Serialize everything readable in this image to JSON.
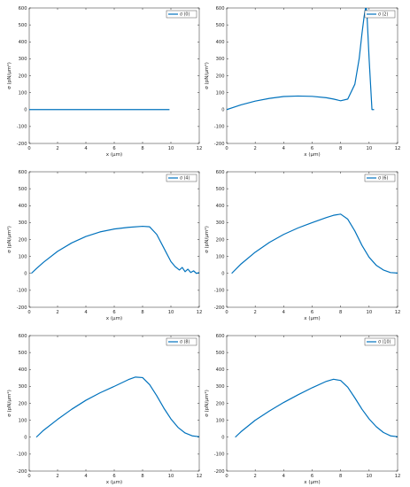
{
  "chart_data": [
    {
      "type": "line",
      "xlabel": "x (μm)",
      "ylabel": "σ (pN/μm²)",
      "xlim": [
        0,
        12
      ],
      "ylim": [
        -200,
        600
      ],
      "xticks": [
        "0",
        "2",
        "4",
        "6",
        "8",
        "10",
        "12"
      ],
      "yticks": [
        "-200",
        "-100",
        "0",
        "100",
        "200",
        "300",
        "400",
        "500",
        "600"
      ],
      "series": [
        {
          "name": "σ (0)",
          "color": "#0072BD",
          "x": [
            0,
            2,
            4,
            6,
            8,
            9.9
          ],
          "y": [
            0,
            0,
            0,
            0,
            0,
            0
          ]
        }
      ]
    },
    {
      "type": "line",
      "xlabel": "x (μm)",
      "ylabel": "σ (pN/μm²)",
      "xlim": [
        0,
        12
      ],
      "ylim": [
        -200,
        600
      ],
      "xticks": [
        "0",
        "2",
        "4",
        "6",
        "8",
        "10",
        "12"
      ],
      "yticks": [
        "-200",
        "-100",
        "0",
        "100",
        "200",
        "300",
        "400",
        "500",
        "600"
      ],
      "series": [
        {
          "name": "σ (2)",
          "color": "#0072BD",
          "x": [
            0,
            1,
            2,
            3,
            4,
            5,
            6,
            7,
            7.5,
            8,
            8.5,
            9,
            9.3,
            9.5,
            9.65,
            9.75,
            9.8,
            9.85,
            10.0,
            10.2,
            10.3,
            10.35
          ],
          "y": [
            0,
            28,
            50,
            66,
            77,
            80,
            78,
            70,
            62,
            52,
            62,
            150,
            300,
            450,
            550,
            600,
            600,
            560,
            300,
            0,
            0,
            0
          ]
        }
      ]
    },
    {
      "type": "line",
      "xlabel": "x (μm)",
      "ylabel": "σ (pN/μm²)",
      "xlim": [
        0,
        12
      ],
      "ylim": [
        -200,
        600
      ],
      "xticks": [
        "0",
        "2",
        "4",
        "6",
        "8",
        "10",
        "12"
      ],
      "yticks": [
        "-200",
        "-100",
        "0",
        "100",
        "200",
        "300",
        "400",
        "500",
        "600"
      ],
      "series": [
        {
          "name": "σ (4)",
          "color": "#0072BD",
          "x": [
            0.15,
            0.5,
            1,
            2,
            3,
            4,
            5,
            6,
            7,
            8,
            8.5,
            9,
            9.5,
            10,
            10.3,
            10.6,
            10.8,
            11,
            11.2,
            11.4,
            11.6,
            11.8,
            12
          ],
          "y": [
            0,
            28,
            65,
            130,
            180,
            218,
            245,
            262,
            272,
            278,
            275,
            230,
            150,
            70,
            40,
            20,
            35,
            10,
            25,
            5,
            15,
            0,
            5
          ]
        }
      ]
    },
    {
      "type": "line",
      "xlabel": "x (μm)",
      "ylabel": "σ (pN/μm²)",
      "xlim": [
        0,
        12
      ],
      "ylim": [
        -200,
        600
      ],
      "xticks": [
        "0",
        "2",
        "4",
        "6",
        "8",
        "10",
        "12"
      ],
      "yticks": [
        "-200",
        "-100",
        "0",
        "100",
        "200",
        "300",
        "400",
        "500",
        "600"
      ],
      "series": [
        {
          "name": "σ (6)",
          "color": "#0072BD",
          "x": [
            0.35,
            1,
            2,
            3,
            4,
            5,
            6,
            7,
            7.5,
            8,
            8.5,
            9,
            9.5,
            10,
            10.5,
            11,
            11.5,
            12
          ],
          "y": [
            0,
            55,
            125,
            183,
            230,
            268,
            300,
            330,
            343,
            350,
            320,
            250,
            165,
            95,
            48,
            20,
            5,
            2
          ]
        }
      ]
    },
    {
      "type": "line",
      "xlabel": "x (μm)",
      "ylabel": "σ (pN/μm²)",
      "xlim": [
        0,
        12
      ],
      "ylim": [
        -200,
        600
      ],
      "xticks": [
        "0",
        "2",
        "4",
        "6",
        "8",
        "10",
        "12"
      ],
      "yticks": [
        "-200",
        "-100",
        "0",
        "100",
        "200",
        "300",
        "400",
        "500",
        "600"
      ],
      "series": [
        {
          "name": "σ (8)",
          "color": "#0072BD",
          "x": [
            0.5,
            1,
            2,
            3,
            4,
            5,
            6,
            7,
            7.5,
            8,
            8.5,
            9,
            9.5,
            10,
            10.5,
            11,
            11.5,
            12
          ],
          "y": [
            0,
            40,
            105,
            165,
            218,
            262,
            300,
            340,
            355,
            352,
            310,
            245,
            172,
            108,
            58,
            25,
            8,
            3
          ]
        }
      ]
    },
    {
      "type": "line",
      "xlabel": "x (μm)",
      "ylabel": "σ (pN/μm²)",
      "xlim": [
        0,
        12
      ],
      "ylim": [
        -200,
        600
      ],
      "xticks": [
        "0",
        "2",
        "4",
        "6",
        "8",
        "10",
        "12"
      ],
      "yticks": [
        "-200",
        "-100",
        "0",
        "100",
        "200",
        "300",
        "400",
        "500",
        "600"
      ],
      "series": [
        {
          "name": "σ (10)",
          "color": "#0072BD",
          "x": [
            0.6,
            1,
            2,
            3,
            4,
            5,
            6,
            7,
            7.5,
            8,
            8.5,
            9,
            9.5,
            10,
            10.5,
            11,
            11.5,
            12
          ],
          "y": [
            0,
            32,
            100,
            155,
            205,
            250,
            292,
            330,
            342,
            335,
            295,
            232,
            165,
            108,
            62,
            28,
            8,
            3
          ]
        }
      ]
    }
  ]
}
